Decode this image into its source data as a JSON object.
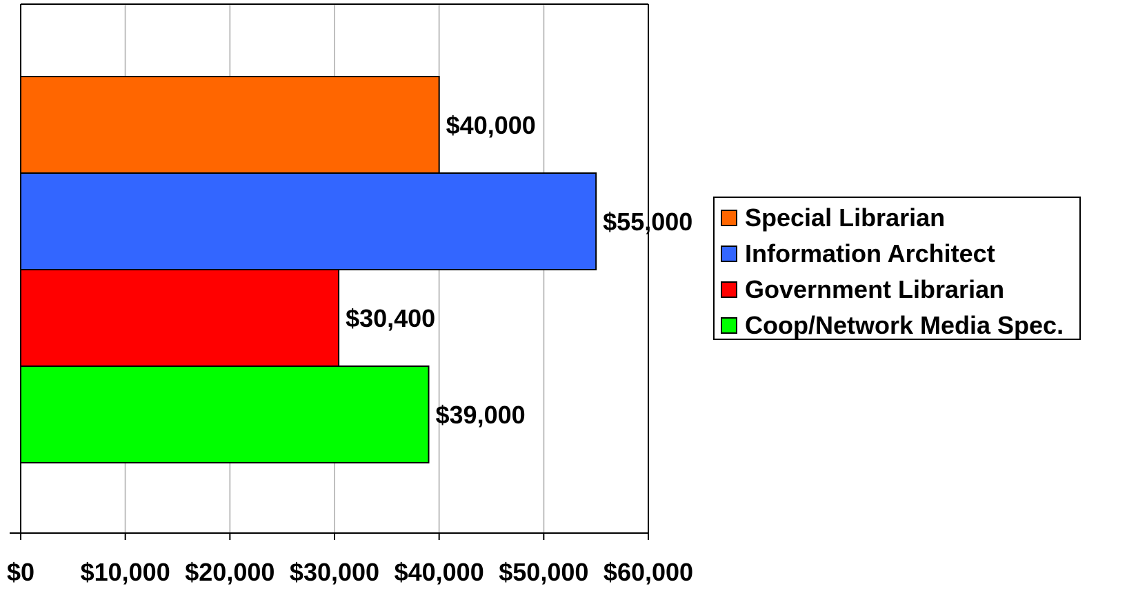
{
  "chart_data": {
    "type": "bar",
    "orientation": "horizontal",
    "title": "",
    "xlabel": "",
    "ylabel": "",
    "xlim": [
      0,
      60000
    ],
    "x_ticks": [
      0,
      10000,
      20000,
      30000,
      40000,
      50000,
      60000
    ],
    "x_tick_labels": [
      "$0",
      "$10,000",
      "$20,000",
      "$30,000",
      "$40,000",
      "$50,000",
      "$60,000"
    ],
    "grid": "vertical",
    "legend_position": "right",
    "series": [
      {
        "name": "Special Librarian",
        "value": 40000,
        "label": "$40,000",
        "color": "#ff6600"
      },
      {
        "name": "Information Architect",
        "value": 55000,
        "label": "$55,000",
        "color": "#3366ff"
      },
      {
        "name": "Government Librarian",
        "value": 30400,
        "label": "$30,400",
        "color": "#ff0000"
      },
      {
        "name": "Coop/Network Media Spec.",
        "value": 39000,
        "label": "$39,000",
        "color": "#00ff00"
      }
    ]
  }
}
